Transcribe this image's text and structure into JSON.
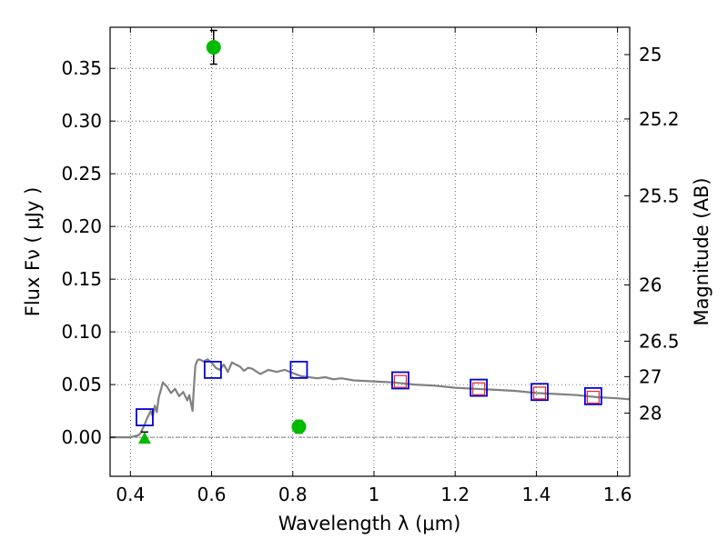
{
  "chart_data": {
    "type": "scatter",
    "title": "",
    "xlabel": "Wavelength  λ (μm)",
    "ylabel": "Flux  Fν  ( μJy )",
    "y2label": "Magnitude (AB)",
    "xlim": [
      0.35,
      1.63
    ],
    "ylim": [
      -0.037,
      0.389
    ],
    "grid": true,
    "x_ticks": [
      {
        "value": 0.4,
        "label": "0.4"
      },
      {
        "value": 0.6,
        "label": "0.6"
      },
      {
        "value": 0.8,
        "label": "0.8"
      },
      {
        "value": 1.0,
        "label": "1"
      },
      {
        "value": 1.2,
        "label": "1.2"
      },
      {
        "value": 1.4,
        "label": "1.4"
      },
      {
        "value": 1.6,
        "label": "1.6"
      }
    ],
    "y_ticks": [
      {
        "value": 0.0,
        "label": "0.00"
      },
      {
        "value": 0.05,
        "label": "0.05"
      },
      {
        "value": 0.1,
        "label": "0.10"
      },
      {
        "value": 0.15,
        "label": "0.15"
      },
      {
        "value": 0.2,
        "label": "0.20"
      },
      {
        "value": 0.25,
        "label": "0.25"
      },
      {
        "value": 0.3,
        "label": "0.30"
      },
      {
        "value": 0.35,
        "label": "0.35"
      }
    ],
    "y2_ticks": [
      {
        "value": 25,
        "label": "25"
      },
      {
        "value": 25.2,
        "label": "25.2"
      },
      {
        "value": 25.5,
        "label": "25.5"
      },
      {
        "value": 26,
        "label": "26"
      },
      {
        "value": 26.5,
        "label": "26.5"
      },
      {
        "value": 27,
        "label": "27"
      },
      {
        "value": 28,
        "label": "28"
      }
    ],
    "series": [
      {
        "role": "model-sed",
        "kind": "line",
        "color": "#808080",
        "x": [
          0.35,
          0.4,
          0.42,
          0.425,
          0.43,
          0.435,
          0.44,
          0.445,
          0.45,
          0.455,
          0.46,
          0.465,
          0.47,
          0.475,
          0.48,
          0.49,
          0.5,
          0.51,
          0.52,
          0.53,
          0.54,
          0.545,
          0.55,
          0.553,
          0.556,
          0.56,
          0.565,
          0.57,
          0.58,
          0.59,
          0.6,
          0.61,
          0.62,
          0.63,
          0.64,
          0.65,
          0.66,
          0.67,
          0.68,
          0.69,
          0.7,
          0.72,
          0.74,
          0.76,
          0.78,
          0.8,
          0.82,
          0.84,
          0.86,
          0.88,
          0.9,
          0.92,
          0.95,
          1.0,
          1.05,
          1.1,
          1.15,
          1.2,
          1.25,
          1.3,
          1.35,
          1.4,
          1.45,
          1.5,
          1.55,
          1.6,
          1.63
        ],
        "y": [
          0.0,
          0.0,
          0.002,
          0.004,
          0.008,
          0.012,
          0.017,
          0.021,
          0.025,
          0.02,
          0.03,
          0.024,
          0.038,
          0.045,
          0.052,
          0.048,
          0.042,
          0.046,
          0.039,
          0.043,
          0.035,
          0.04,
          0.031,
          0.025,
          0.045,
          0.068,
          0.073,
          0.074,
          0.072,
          0.074,
          0.071,
          0.066,
          0.064,
          0.069,
          0.062,
          0.071,
          0.069,
          0.067,
          0.063,
          0.066,
          0.065,
          0.06,
          0.064,
          0.062,
          0.064,
          0.061,
          0.058,
          0.057,
          0.056,
          0.057,
          0.055,
          0.056,
          0.054,
          0.053,
          0.052,
          0.05,
          0.049,
          0.047,
          0.046,
          0.045,
          0.044,
          0.042,
          0.041,
          0.04,
          0.038,
          0.037,
          0.036
        ]
      },
      {
        "role": "model-photometry",
        "kind": "open-square",
        "color": "#0000dd",
        "x": [
          0.435,
          0.603,
          0.815,
          1.065,
          1.258,
          1.408,
          1.54
        ],
        "y": [
          0.019,
          0.064,
          0.064,
          0.054,
          0.047,
          0.043,
          0.039
        ]
      },
      {
        "role": "observed-photometry",
        "kind": "open-square",
        "color": "#e03030",
        "x": [
          1.065,
          1.258,
          1.408,
          1.54
        ],
        "y": [
          0.053,
          0.046,
          0.042,
          0.038
        ]
      },
      {
        "role": "detections",
        "kind": "filled-circle",
        "color": "#00bb00",
        "x": [
          0.605,
          0.815
        ],
        "y": [
          0.37,
          0.01
        ],
        "err": [
          0.016,
          0.006
        ]
      },
      {
        "role": "upper-limit",
        "kind": "filled-triangle",
        "color": "#00bb00",
        "x": [
          0.435
        ],
        "y": [
          0.0
        ],
        "err": [
          0.005
        ]
      }
    ]
  }
}
